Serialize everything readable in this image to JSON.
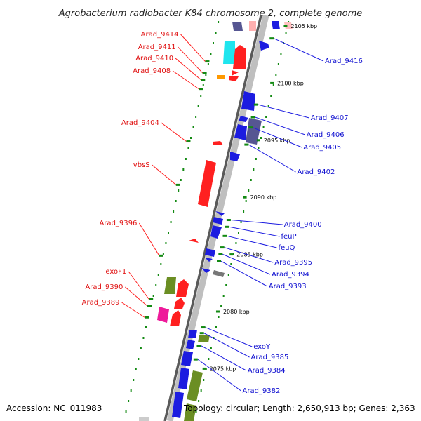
{
  "title": "Agrobacterium radiobacter K84 chromosome 2, complete genome",
  "footer": {
    "accession": "Accession: NC_011983",
    "topology": "Topology: circular; Length: 2,650,913 bp; Genes: 2,363"
  },
  "colors": {
    "backbone_dark": "#555555",
    "backbone_light": "#bbbbbb",
    "red": "#ff2020",
    "blue": "#1c1ce0",
    "cyan": "#1fe5ee",
    "olive": "#6b8e23",
    "magenta": "#ee1a9a",
    "orange": "#ff9900",
    "slate": "#565692",
    "pink": "#ffb0b0",
    "gray": "#777777",
    "tick": "#138a13"
  },
  "scale": [
    {
      "label": "2105 kbp",
      "kbp": 2105
    },
    {
      "label": "2100 kbp",
      "kbp": 2100
    },
    {
      "label": "2095 kbp",
      "kbp": 2095
    },
    {
      "label": "2090 kbp",
      "kbp": 2090
    },
    {
      "label": "2085 kbp",
      "kbp": 2085
    },
    {
      "label": "2080 kbp",
      "kbp": 2080
    },
    {
      "label": "2075 kbp",
      "kbp": 2075
    }
  ],
  "left_labels": [
    {
      "label": "Arad_9414",
      "kbp": 2103.0
    },
    {
      "label": "Arad_9411",
      "kbp": 2102.0
    },
    {
      "label": "Arad_9410",
      "kbp": 2101.4
    },
    {
      "label": "Arad_9408",
      "kbp": 2100.6
    },
    {
      "label": "Arad_9404",
      "kbp": 2096.0
    },
    {
      "label": "vbsS",
      "kbp": 2092.2
    },
    {
      "label": "Arad_9396",
      "kbp": 2086.0
    },
    {
      "label": "exoF1",
      "kbp": 2082.2
    },
    {
      "label": "Arad_9390",
      "kbp": 2081.6
    },
    {
      "label": "Arad_9389",
      "kbp": 2080.6
    }
  ],
  "right_labels": [
    {
      "label": "Arad_9416",
      "kbp": 2103.3
    },
    {
      "label": "Arad_9407",
      "kbp": 2097.5
    },
    {
      "label": "Arad_9406",
      "kbp": 2096.4
    },
    {
      "label": "Arad_9405",
      "kbp": 2095.5
    },
    {
      "label": "Arad_9402",
      "kbp": 2094.0
    },
    {
      "label": "Arad_9400",
      "kbp": 2087.4
    },
    {
      "label": "feuP",
      "kbp": 2086.8
    },
    {
      "label": "feuQ",
      "kbp": 2086.0
    },
    {
      "label": "Arad_9395",
      "kbp": 2085.0
    },
    {
      "label": "Arad_9394",
      "kbp": 2084.4
    },
    {
      "label": "Arad_9393",
      "kbp": 2083.8
    },
    {
      "label": "exoY",
      "kbp": 2078.0
    },
    {
      "label": "Arad_9385",
      "kbp": 2077.5
    },
    {
      "label": "Arad_9384",
      "kbp": 2076.4
    },
    {
      "label": "Arad_9382",
      "kbp": 2075.2
    }
  ]
}
